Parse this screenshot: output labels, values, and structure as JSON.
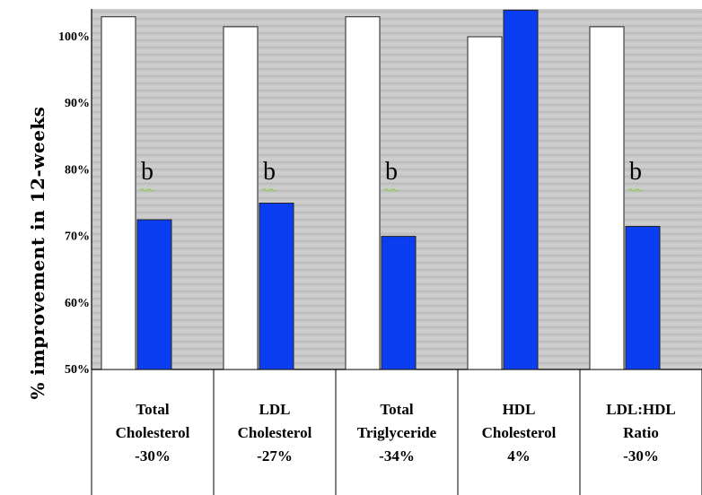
{
  "chart_data": {
    "type": "bar",
    "ylabel": "% improvement in 12-weeks",
    "ylim": [
      50,
      105
    ],
    "yticks": [
      50,
      60,
      70,
      80,
      90,
      100
    ],
    "ytick_labels": [
      "50%",
      "60%",
      "70%",
      "80%",
      "90%",
      "100%"
    ],
    "categories": [
      [
        "Total",
        "Cholesterol",
        "-30%"
      ],
      [
        "LDL",
        "Cholesterol",
        "-27%"
      ],
      [
        "Total",
        "Triglyceride",
        "-34%"
      ],
      [
        "HDL",
        "Cholesterol",
        "4%"
      ],
      [
        "LDL:HDL",
        "Ratio",
        "-30%"
      ]
    ],
    "series": [
      {
        "color": "#ffffff",
        "values": [
          103.0,
          101.5,
          103.0,
          100.0,
          101.5
        ]
      },
      {
        "color": "#0a3cf0",
        "values": [
          72.5,
          75.0,
          70.0,
          104.0,
          71.5
        ]
      }
    ],
    "annotations": [
      "b",
      "b",
      "b",
      "",
      "b"
    ],
    "annotation_underline_color": "#8fd04a",
    "plot_background": "#c7c7c7",
    "grid": false
  }
}
